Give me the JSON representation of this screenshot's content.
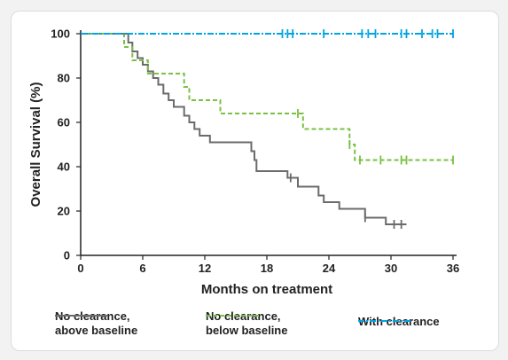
{
  "chart_data": {
    "type": "line",
    "chart_style": "kaplan-meier step plot",
    "xlabel": "Months on treatment",
    "ylabel": "Overall Survival (%)",
    "xlim": [
      0,
      36
    ],
    "ylim": [
      0,
      100
    ],
    "xticks": [
      "0",
      "6",
      "12",
      "18",
      "24",
      "30",
      "36"
    ],
    "yticks": [
      "0",
      "20",
      "40",
      "60",
      "80",
      "100"
    ],
    "grid": false,
    "legend_position": "bottom",
    "series": [
      {
        "name": "No clearance,\nabove baseline",
        "color": "#6b6b6b",
        "line_style": "solid",
        "points": [
          [
            0,
            100
          ],
          [
            4.6,
            100
          ],
          [
            4.6,
            96
          ],
          [
            5.0,
            96
          ],
          [
            5.0,
            92
          ],
          [
            5.5,
            92
          ],
          [
            5.5,
            89
          ],
          [
            6.0,
            89
          ],
          [
            6.0,
            86
          ],
          [
            6.5,
            86
          ],
          [
            6.5,
            83
          ],
          [
            7.0,
            83
          ],
          [
            7.0,
            80
          ],
          [
            7.5,
            80
          ],
          [
            7.5,
            77
          ],
          [
            8.0,
            77
          ],
          [
            8.0,
            73
          ],
          [
            8.5,
            73
          ],
          [
            8.5,
            70
          ],
          [
            9.0,
            70
          ],
          [
            9.0,
            67
          ],
          [
            10.0,
            67
          ],
          [
            10.0,
            63
          ],
          [
            10.5,
            63
          ],
          [
            10.5,
            60
          ],
          [
            11.0,
            60
          ],
          [
            11.0,
            57
          ],
          [
            11.5,
            57
          ],
          [
            11.5,
            54
          ],
          [
            12.5,
            54
          ],
          [
            12.5,
            51
          ],
          [
            16.5,
            51
          ],
          [
            16.5,
            47
          ],
          [
            16.8,
            47
          ],
          [
            16.8,
            43
          ],
          [
            17.0,
            43
          ],
          [
            17.0,
            38
          ],
          [
            20.0,
            38
          ],
          [
            20.0,
            35
          ],
          [
            21.0,
            35
          ],
          [
            21.0,
            31
          ],
          [
            23.0,
            31
          ],
          [
            23.0,
            27
          ],
          [
            23.5,
            27
          ],
          [
            23.5,
            24
          ],
          [
            25.0,
            24
          ],
          [
            25.0,
            21
          ],
          [
            27.5,
            21
          ],
          [
            27.5,
            17
          ],
          [
            29.5,
            17
          ],
          [
            29.5,
            14
          ],
          [
            31.5,
            14
          ]
        ],
        "censored_x": [
          20.3,
          27.5,
          30.3,
          31.0
        ]
      },
      {
        "name": "No clearance,\nbelow baseline",
        "color": "#7ac143",
        "line_style": "dashed",
        "points": [
          [
            0,
            100
          ],
          [
            4.2,
            100
          ],
          [
            4.2,
            94
          ],
          [
            5.0,
            94
          ],
          [
            5.0,
            88
          ],
          [
            6.5,
            88
          ],
          [
            6.5,
            82
          ],
          [
            10.0,
            82
          ],
          [
            10.0,
            76
          ],
          [
            10.5,
            76
          ],
          [
            10.5,
            70
          ],
          [
            13.5,
            70
          ],
          [
            13.5,
            64
          ],
          [
            21.5,
            64
          ],
          [
            21.5,
            57
          ],
          [
            26.0,
            57
          ],
          [
            26.0,
            50
          ],
          [
            26.5,
            50
          ],
          [
            26.5,
            43
          ],
          [
            38.5,
            43
          ]
        ],
        "censored_x": [
          21.0,
          26.0,
          27.0,
          29.0,
          31.0,
          31.5,
          38.0
        ]
      },
      {
        "name": "With clearance",
        "color": "#00a4e4",
        "line_style": "dash-dot",
        "points": [
          [
            0,
            100
          ],
          [
            38.5,
            100
          ]
        ],
        "censored_x": [
          19.5,
          20.0,
          20.5,
          23.5,
          27.2,
          27.8,
          28.5,
          31.0,
          31.5,
          33.0,
          34.0,
          34.5,
          38.0
        ]
      }
    ]
  }
}
